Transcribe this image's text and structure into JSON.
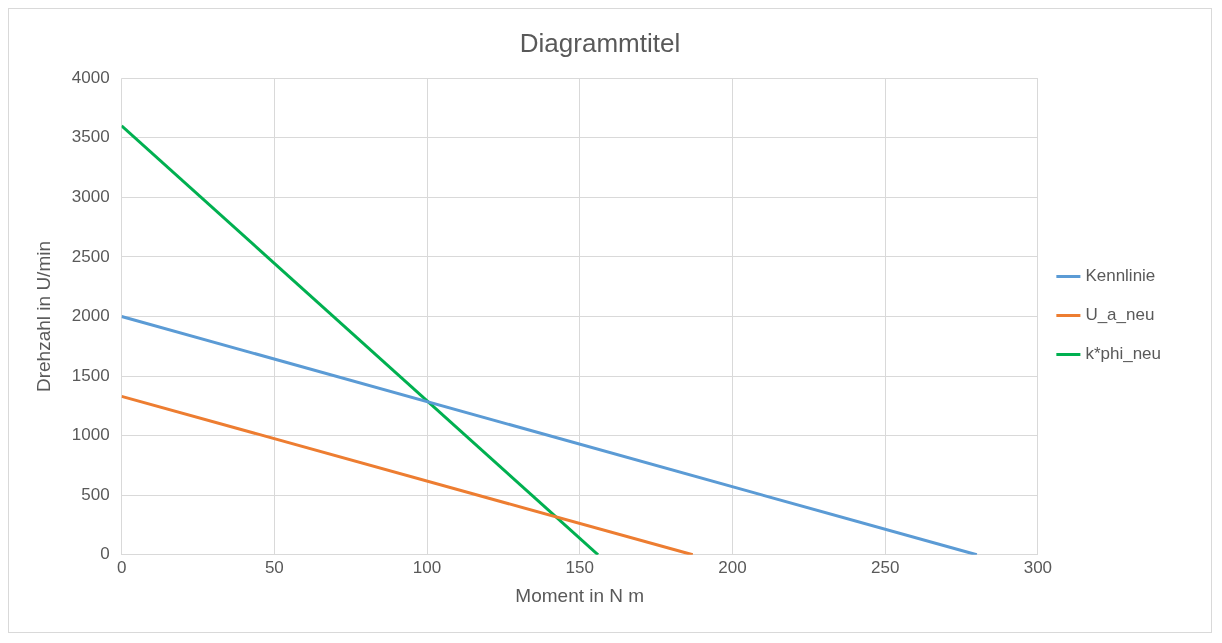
{
  "chart_data": {
    "type": "line",
    "title": "Diagrammtitel",
    "xlabel": "Moment in N m",
    "ylabel": "Drehzahl in U/min",
    "xlim": [
      0,
      300
    ],
    "xticks": [
      0,
      50,
      100,
      150,
      200,
      250,
      300
    ],
    "ylim": [
      0,
      4000
    ],
    "yticks": [
      0,
      500,
      1000,
      1500,
      2000,
      2500,
      3000,
      3500,
      4000
    ],
    "grid": true,
    "legend": "right",
    "marker": "none",
    "line_style": "solid",
    "series": [
      {
        "name": "Kennlinie",
        "color": "#5b9bd5",
        "x": [
          0,
          280
        ],
        "values": [
          2000,
          0
        ]
      },
      {
        "name": "U_a_neu",
        "color": "#ed7d31",
        "x": [
          0,
          187
        ],
        "values": [
          1330,
          0
        ]
      },
      {
        "name": "k*phi_neu",
        "color": "#00b050",
        "x": [
          0,
          156
        ],
        "values": [
          3600,
          0
        ]
      }
    ]
  }
}
